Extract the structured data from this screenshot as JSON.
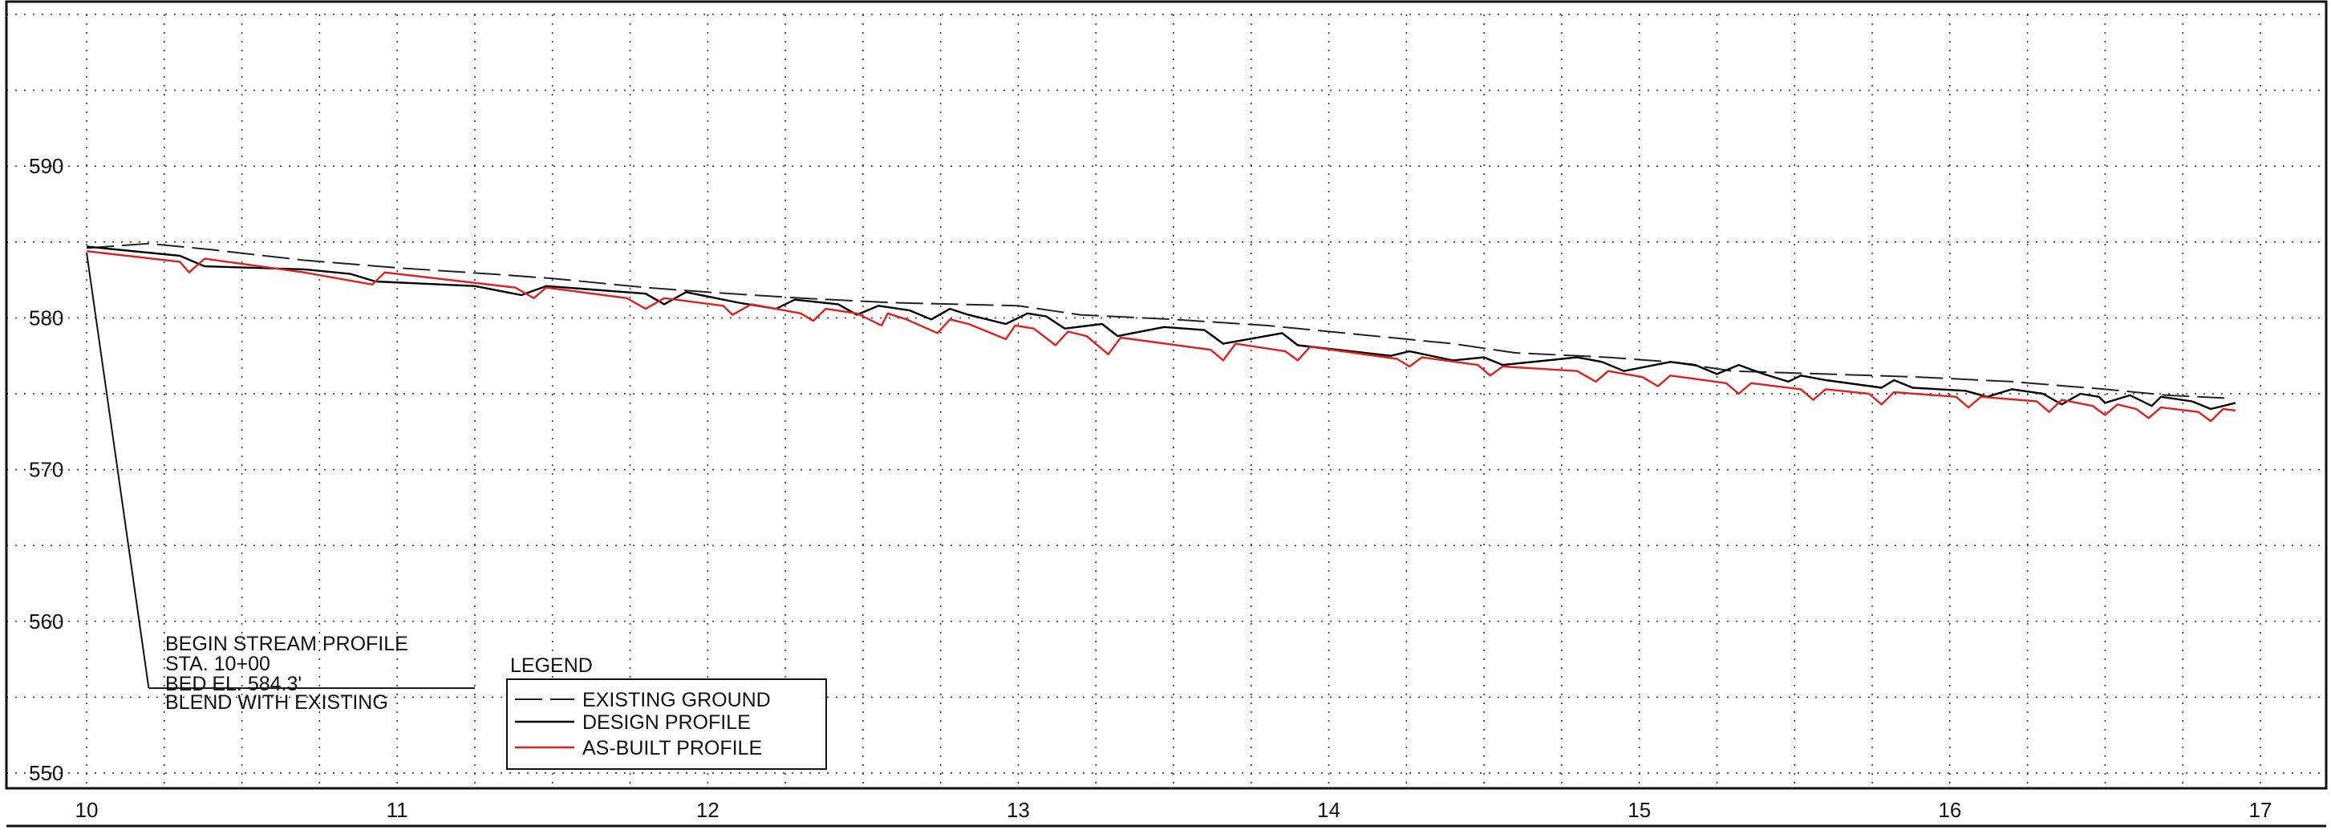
{
  "chart_data": {
    "type": "line",
    "xlabel": "",
    "ylabel": "",
    "xlim": [
      10,
      17
    ],
    "ylim": [
      549,
      600
    ],
    "grid": true,
    "x_ticks": [
      {
        "value": 10,
        "label": "10"
      },
      {
        "value": 11,
        "label": "11"
      },
      {
        "value": 12,
        "label": "12"
      },
      {
        "value": 13,
        "label": "13"
      },
      {
        "value": 14,
        "label": "14"
      },
      {
        "value": 15,
        "label": "15"
      },
      {
        "value": 16,
        "label": "16"
      },
      {
        "value": 17,
        "label": "17"
      }
    ],
    "y_ticks": [
      {
        "value": 550,
        "label": "550"
      },
      {
        "value": 560,
        "label": "560"
      },
      {
        "value": 570,
        "label": "570"
      },
      {
        "value": 580,
        "label": "580"
      },
      {
        "value": 590,
        "label": "590"
      }
    ],
    "series": [
      {
        "name": "EXISTING GROUND",
        "style": "dashed",
        "color": "#222222",
        "x": [
          10.0,
          10.2,
          10.4,
          10.7,
          11.0,
          11.3,
          11.5,
          11.8,
          12.0,
          12.3,
          12.6,
          12.8,
          13.0,
          13.2,
          13.5,
          13.8,
          14.1,
          14.4,
          14.6,
          14.9,
          15.1,
          15.3,
          15.6,
          15.9,
          16.2,
          16.5,
          16.7,
          16.9
        ],
        "y": [
          584.6,
          584.9,
          584.5,
          583.8,
          583.3,
          582.9,
          582.6,
          582.0,
          581.7,
          581.3,
          581.0,
          580.9,
          580.8,
          580.2,
          579.9,
          579.5,
          578.9,
          578.3,
          577.7,
          577.4,
          577.1,
          576.5,
          576.3,
          576.1,
          575.8,
          575.3,
          574.9,
          574.7
        ]
      },
      {
        "name": "DESIGN PROFILE",
        "style": "solid",
        "color": "#000000",
        "x": [
          10.0,
          10.3,
          10.38,
          10.7,
          10.85,
          10.93,
          11.25,
          11.4,
          11.48,
          11.8,
          11.86,
          11.93,
          12.1,
          12.22,
          12.28,
          12.42,
          12.48,
          12.55,
          12.65,
          12.72,
          12.78,
          12.84,
          12.96,
          13.03,
          13.09,
          13.15,
          13.27,
          13.32,
          13.47,
          13.6,
          13.66,
          13.85,
          13.9,
          14.2,
          14.26,
          14.4,
          14.5,
          14.56,
          14.8,
          14.88,
          14.95,
          15.1,
          15.18,
          15.25,
          15.32,
          15.4,
          15.48,
          15.52,
          15.6,
          15.78,
          15.82,
          15.88,
          16.05,
          16.12,
          16.2,
          16.3,
          16.36,
          16.42,
          16.48,
          16.5,
          16.58,
          16.65,
          16.68,
          16.78,
          16.84,
          16.92
        ],
        "y": [
          584.7,
          584.1,
          583.4,
          583.2,
          582.9,
          582.4,
          582.1,
          581.5,
          582.1,
          581.6,
          580.9,
          581.7,
          581.0,
          580.6,
          581.2,
          580.9,
          580.2,
          580.8,
          580.5,
          579.9,
          580.6,
          580.2,
          579.6,
          580.3,
          580.1,
          579.3,
          579.6,
          578.8,
          579.4,
          579.2,
          578.3,
          579.0,
          578.2,
          577.5,
          577.8,
          577.2,
          577.4,
          576.9,
          577.4,
          577.1,
          576.5,
          577.1,
          576.9,
          576.3,
          576.9,
          576.3,
          575.8,
          576.2,
          575.9,
          575.4,
          575.9,
          575.4,
          575.2,
          574.8,
          575.3,
          575.0,
          574.3,
          575.0,
          574.8,
          574.4,
          574.9,
          574.2,
          574.8,
          574.5,
          574.0,
          574.4
        ]
      },
      {
        "name": "AS-BUILT PROFILE",
        "style": "solid",
        "color": "#e0201b",
        "x": [
          10.0,
          10.3,
          10.33,
          10.38,
          10.7,
          10.92,
          10.96,
          11.38,
          11.44,
          11.48,
          11.74,
          11.8,
          11.86,
          12.05,
          12.08,
          12.14,
          12.3,
          12.34,
          12.38,
          12.48,
          12.56,
          12.58,
          12.64,
          12.74,
          12.78,
          12.84,
          12.96,
          12.99,
          13.05,
          13.12,
          13.16,
          13.22,
          13.29,
          13.33,
          13.62,
          13.66,
          13.7,
          13.86,
          13.9,
          13.94,
          14.22,
          14.26,
          14.3,
          14.48,
          14.52,
          14.56,
          14.8,
          14.86,
          14.9,
          15.01,
          15.06,
          15.1,
          15.28,
          15.32,
          15.36,
          15.52,
          15.56,
          15.6,
          15.74,
          15.78,
          15.82,
          16.02,
          16.06,
          16.1,
          16.28,
          16.32,
          16.36,
          16.46,
          16.5,
          16.54,
          16.6,
          16.64,
          16.68,
          16.8,
          16.84,
          16.88,
          16.92
        ],
        "y": [
          584.4,
          583.7,
          583.0,
          583.9,
          583.0,
          582.2,
          583.0,
          582.0,
          581.3,
          582.0,
          581.3,
          580.6,
          581.3,
          580.8,
          580.2,
          580.9,
          580.3,
          579.8,
          580.6,
          580.3,
          579.5,
          580.3,
          579.9,
          579.0,
          579.9,
          579.6,
          578.6,
          579.5,
          579.3,
          578.2,
          579.1,
          578.8,
          577.6,
          578.7,
          577.9,
          577.2,
          578.3,
          577.8,
          577.2,
          578.1,
          577.3,
          576.8,
          577.4,
          576.9,
          576.2,
          576.8,
          576.5,
          575.8,
          576.5,
          576.1,
          575.5,
          576.2,
          575.7,
          575.0,
          575.7,
          575.3,
          574.6,
          575.3,
          575.0,
          574.3,
          575.1,
          574.8,
          574.1,
          574.8,
          574.5,
          573.8,
          574.6,
          574.2,
          573.6,
          574.3,
          574.0,
          573.4,
          574.1,
          573.8,
          573.2,
          574.0,
          573.9
        ]
      }
    ],
    "annotation": {
      "lines": [
        "BEGIN STREAM PROFILE",
        "STA. 10+00",
        "BED EL. 584.3'",
        "BLEND WITH EXISTING"
      ],
      "leader_from": {
        "x": 10.0,
        "y": 584.3
      },
      "leader_to": {
        "x": 10.2,
        "y": 555.6
      }
    },
    "legend": {
      "title": "LEGEND",
      "position": "bottom-left",
      "items": [
        {
          "label": "EXISTING GROUND",
          "style": "dashed",
          "color": "#222222"
        },
        {
          "label": "DESIGN PROFILE",
          "style": "solid",
          "color": "#000000"
        },
        {
          "label": "AS-BUILT PROFILE",
          "style": "solid",
          "color": "#e0201b"
        }
      ]
    }
  }
}
